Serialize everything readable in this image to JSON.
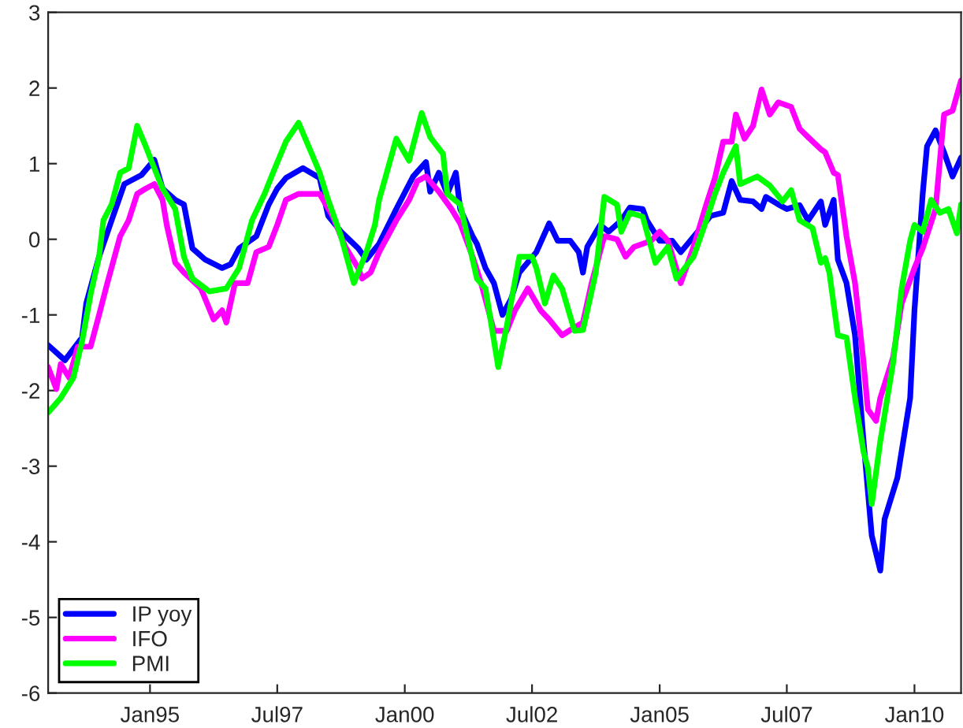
{
  "chart_data": {
    "type": "line",
    "xlim": [
      "1993-01",
      "2010-12"
    ],
    "ylim": [
      -6,
      3
    ],
    "yticks": [
      -6,
      -5,
      -4,
      -3,
      -2,
      -1,
      0,
      1,
      2,
      3
    ],
    "xticks": [
      {
        "value": "1995-01",
        "label": "Jan95"
      },
      {
        "value": "1997-07",
        "label": "Jul97"
      },
      {
        "value": "2000-01",
        "label": "Jan00"
      },
      {
        "value": "2002-07",
        "label": "Jul02"
      },
      {
        "value": "2005-01",
        "label": "Jan05"
      },
      {
        "value": "2007-07",
        "label": "Jul07"
      },
      {
        "value": "2010-01",
        "label": "Jan10"
      }
    ],
    "grid": false,
    "legend": "bottom left",
    "line_style": "solid",
    "marker": "none",
    "series": [
      {
        "name": "IP yoy",
        "color": "#0000ff",
        "x": [
          "1993-01",
          "1993-05",
          "1993-09",
          "1993-10",
          "1994-01",
          "1994-04",
          "1994-07",
          "1994-11",
          "1995-02",
          "1995-04",
          "1995-07",
          "1995-09",
          "1995-11",
          "1996-02",
          "1996-06",
          "1996-08",
          "1996-10",
          "1997-02",
          "1997-05",
          "1997-07",
          "1997-09",
          "1998-01",
          "1998-05",
          "1998-07",
          "1998-10",
          "1999-02",
          "1999-04",
          "1999-07",
          "1999-11",
          "2000-03",
          "2000-06",
          "2000-07",
          "2000-09",
          "2000-11",
          "2001-01",
          "2001-02",
          "2001-05",
          "2001-06",
          "2001-08",
          "2001-10",
          "2001-12",
          "2002-02",
          "2002-04",
          "2002-08",
          "2002-11",
          "2003-01",
          "2003-04",
          "2003-06",
          "2003-07",
          "2003-08",
          "2003-11",
          "2004-01",
          "2004-04",
          "2004-06",
          "2004-09",
          "2004-10",
          "2005-01",
          "2005-04",
          "2005-06",
          "2005-10",
          "2006-01",
          "2006-04",
          "2006-06",
          "2006-08",
          "2006-11",
          "2007-01",
          "2007-02",
          "2007-05",
          "2007-07",
          "2007-10",
          "2007-12",
          "2008-03",
          "2008-04",
          "2008-06",
          "2008-07",
          "2008-09",
          "2008-11",
          "2009-01",
          "2009-03",
          "2009-05",
          "2009-06",
          "2009-09",
          "2009-12",
          "2010-01",
          "2010-03",
          "2010-04",
          "2010-06",
          "2010-08",
          "2010-10",
          "2010-12"
        ],
        "values": [
          -1.4,
          -1.6,
          -1.3,
          -0.85,
          -0.23,
          0.25,
          0.73,
          0.85,
          1.05,
          0.67,
          0.52,
          0.46,
          -0.12,
          -0.27,
          -0.38,
          -0.33,
          -0.12,
          0.04,
          0.46,
          0.67,
          0.81,
          0.94,
          0.81,
          0.31,
          0.1,
          -0.12,
          -0.27,
          -0.06,
          0.4,
          0.83,
          1.02,
          0.63,
          0.88,
          0.6,
          0.88,
          0.4,
          0.04,
          -0.06,
          -0.38,
          -0.58,
          -1.0,
          -0.79,
          -0.44,
          -0.17,
          0.21,
          -0.02,
          -0.02,
          -0.17,
          -0.44,
          -0.1,
          0.19,
          0.1,
          0.25,
          0.42,
          0.4,
          0.25,
          -0.02,
          -0.02,
          -0.17,
          0.1,
          0.31,
          0.35,
          0.77,
          0.52,
          0.5,
          0.4,
          0.56,
          0.46,
          0.4,
          0.45,
          0.25,
          0.5,
          0.19,
          0.52,
          -0.27,
          -0.58,
          -1.27,
          -2.67,
          -3.92,
          -4.38,
          -3.7,
          -3.15,
          -2.1,
          -0.94,
          0.6,
          1.23,
          1.44,
          1.15,
          0.83,
          1.08
        ]
      },
      {
        "name": "IFO",
        "color": "#ff00ff",
        "x": [
          "1993-01",
          "1993-03",
          "1993-04",
          "1993-06",
          "1993-08",
          "1993-11",
          "1994-01",
          "1994-03",
          "1994-06",
          "1994-08",
          "1994-10",
          "1994-12",
          "1995-02",
          "1995-04",
          "1995-05",
          "1995-07",
          "1995-09",
          "1996-01",
          "1996-04",
          "1996-06",
          "1996-07",
          "1996-09",
          "1996-12",
          "1997-02",
          "1997-05",
          "1997-07",
          "1997-09",
          "1997-12",
          "1998-03",
          "1998-05",
          "1998-08",
          "1998-11",
          "1999-02",
          "1999-03",
          "1999-05",
          "1999-07",
          "1999-11",
          "2000-02",
          "2000-04",
          "2000-06",
          "2000-09",
          "2000-12",
          "2001-02",
          "2001-05",
          "2001-07",
          "2001-10",
          "2002-01",
          "2002-03",
          "2002-06",
          "2002-09",
          "2002-11",
          "2003-02",
          "2003-04",
          "2003-07",
          "2003-09",
          "2003-12",
          "2004-03",
          "2004-05",
          "2004-07",
          "2004-11",
          "2005-01",
          "2005-03",
          "2005-06",
          "2005-09",
          "2005-12",
          "2006-02",
          "2006-04",
          "2006-06",
          "2006-07",
          "2006-09",
          "2006-11",
          "2007-01",
          "2007-03",
          "2007-05",
          "2007-08",
          "2007-10",
          "2007-12",
          "2008-03",
          "2008-04",
          "2008-06",
          "2008-07",
          "2008-09",
          "2008-11",
          "2009-01",
          "2009-02",
          "2009-04",
          "2009-05",
          "2009-08",
          "2009-10",
          "2010-01",
          "2010-03",
          "2010-06",
          "2010-08",
          "2010-10",
          "2010-12"
        ],
        "values": [
          -1.69,
          -1.98,
          -1.65,
          -1.83,
          -1.42,
          -1.42,
          -1.0,
          -0.58,
          0.04,
          0.25,
          0.6,
          0.67,
          0.73,
          0.52,
          0.19,
          -0.31,
          -0.44,
          -0.65,
          -1.06,
          -0.94,
          -1.1,
          -0.58,
          -0.58,
          -0.17,
          -0.1,
          0.19,
          0.52,
          0.6,
          0.6,
          0.6,
          0.31,
          -0.1,
          -0.38,
          -0.52,
          -0.44,
          -0.17,
          0.25,
          0.52,
          0.77,
          0.83,
          0.63,
          0.4,
          0.21,
          -0.23,
          -0.58,
          -1.21,
          -1.21,
          -0.94,
          -0.65,
          -0.94,
          -1.06,
          -1.27,
          -1.2,
          -1.1,
          -0.58,
          0.04,
          0.0,
          -0.23,
          -0.1,
          -0.02,
          0.1,
          -0.02,
          -0.58,
          -0.1,
          0.46,
          0.81,
          1.29,
          1.29,
          1.65,
          1.33,
          1.5,
          1.98,
          1.65,
          1.81,
          1.75,
          1.46,
          1.35,
          1.19,
          1.15,
          0.88,
          0.85,
          0.04,
          -0.58,
          -1.63,
          -2.25,
          -2.4,
          -2.1,
          -1.56,
          -0.85,
          -0.38,
          -0.12,
          0.4,
          1.65,
          1.7,
          2.1
        ]
      },
      {
        "name": "PMI",
        "color": "#00ff00",
        "x": [
          "1993-01",
          "1993-04",
          "1993-07",
          "1993-09",
          "1993-11",
          "1994-01",
          "1994-02",
          "1994-04",
          "1994-06",
          "1994-08",
          "1994-10",
          "1994-12",
          "1995-02",
          "1995-04",
          "1995-07",
          "1995-09",
          "1995-11",
          "1996-03",
          "1996-07",
          "1996-10",
          "1997-01",
          "1997-04",
          "1997-06",
          "1997-09",
          "1997-12",
          "1998-03",
          "1998-05",
          "1998-07",
          "1998-10",
          "1999-01",
          "1999-04",
          "1999-06",
          "1999-07",
          "1999-11",
          "2000-02",
          "2000-05",
          "2000-07",
          "2000-10",
          "2000-11",
          "2001-02",
          "2001-04",
          "2001-06",
          "2001-08",
          "2001-11",
          "2002-01",
          "2002-04",
          "2002-07",
          "2002-08",
          "2002-10",
          "2002-12",
          "2003-02",
          "2003-05",
          "2003-07",
          "2003-10",
          "2003-12",
          "2004-03",
          "2004-04",
          "2004-06",
          "2004-09",
          "2004-12",
          "2005-03",
          "2005-05",
          "2005-09",
          "2005-12",
          "2006-02",
          "2006-04",
          "2006-07",
          "2006-08",
          "2006-12",
          "2007-03",
          "2007-06",
          "2007-08",
          "2007-10",
          "2008-01",
          "2008-03",
          "2008-04",
          "2008-05",
          "2008-07",
          "2008-09",
          "2008-11",
          "2009-01",
          "2009-02",
          "2009-03",
          "2009-05",
          "2009-08",
          "2009-10",
          "2009-12",
          "2010-01",
          "2010-03",
          "2010-05",
          "2010-07",
          "2010-09",
          "2010-11",
          "2010-12"
        ],
        "values": [
          -2.29,
          -2.1,
          -1.83,
          -1.35,
          -0.73,
          -0.23,
          0.25,
          0.46,
          0.88,
          0.94,
          1.5,
          1.23,
          0.94,
          0.67,
          0.4,
          -0.23,
          -0.52,
          -0.69,
          -0.65,
          -0.38,
          0.25,
          0.6,
          0.88,
          1.29,
          1.54,
          1.15,
          0.88,
          0.52,
          0.04,
          -0.58,
          -0.17,
          0.19,
          0.52,
          1.33,
          1.04,
          1.67,
          1.35,
          1.13,
          0.6,
          0.46,
          -0.02,
          -0.52,
          -0.65,
          -1.69,
          -1.15,
          -0.23,
          -0.23,
          -0.38,
          -0.85,
          -0.48,
          -0.65,
          -1.21,
          -1.2,
          -0.44,
          0.56,
          0.46,
          0.1,
          0.35,
          0.3,
          -0.31,
          -0.1,
          -0.52,
          -0.23,
          0.25,
          0.6,
          0.88,
          1.23,
          0.73,
          0.83,
          0.71,
          0.5,
          0.65,
          0.25,
          0.15,
          -0.31,
          -0.25,
          -0.44,
          -1.27,
          -1.3,
          -2.1,
          -2.81,
          -3.02,
          -3.5,
          -2.67,
          -1.63,
          -0.65,
          -0.02,
          0.19,
          0.1,
          0.52,
          0.35,
          0.4,
          0.08,
          0.46
        ]
      }
    ]
  }
}
